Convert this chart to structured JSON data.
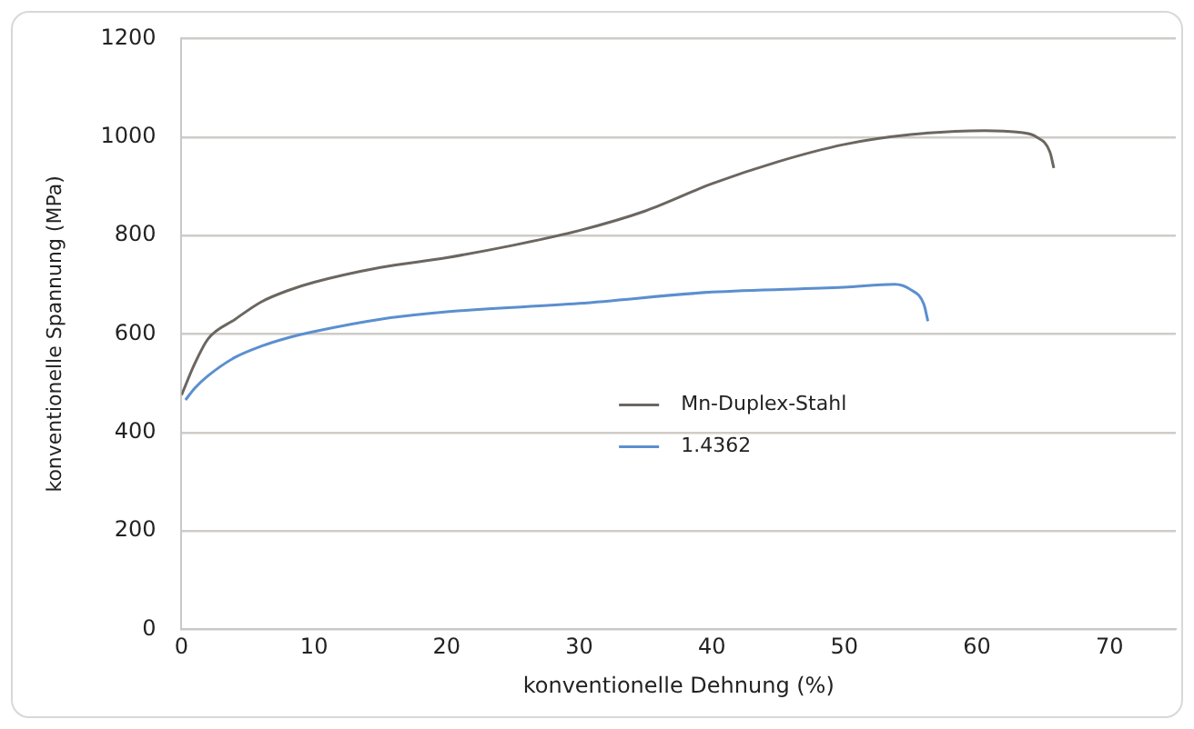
{
  "chart_data": {
    "type": "line",
    "xlabel": "konventionelle Dehnung (%)",
    "ylabel": "konventionelle Spannung (MPa)",
    "xlim": [
      0,
      75
    ],
    "xticks": [
      0,
      10,
      20,
      30,
      40,
      50,
      60,
      70
    ],
    "ylim": [
      0,
      1200
    ],
    "yticks": [
      0,
      200,
      400,
      600,
      800,
      1000,
      1200
    ],
    "grid": "y",
    "legend": "center",
    "marker": "none",
    "line_style": "solid",
    "series": [
      {
        "name": "Mn-Duplex-Stahl",
        "color": "#6b6660",
        "x": [
          0,
          1,
          2,
          4,
          6,
          8,
          10,
          15,
          20,
          25,
          30,
          35,
          40,
          45,
          50,
          55,
          60.6,
          63,
          64.5,
          65.5,
          65.8
        ],
        "values": [
          476,
          540,
          590,
          629,
          665,
          688,
          705,
          735,
          755,
          780,
          810,
          850,
          905,
          950,
          985,
          1005,
          1013,
          1010,
          1000,
          970,
          937
        ]
      },
      {
        "name": "1.4362",
        "color": "#5b8fcf",
        "x": [
          0.3,
          1,
          2,
          4,
          6,
          8,
          10,
          15,
          20,
          30,
          40,
          50,
          53.8,
          55,
          56,
          56.3
        ],
        "values": [
          466,
          490,
          515,
          552,
          575,
          592,
          605,
          630,
          645,
          662,
          685,
          695,
          701,
          690,
          660,
          626
        ]
      }
    ]
  }
}
